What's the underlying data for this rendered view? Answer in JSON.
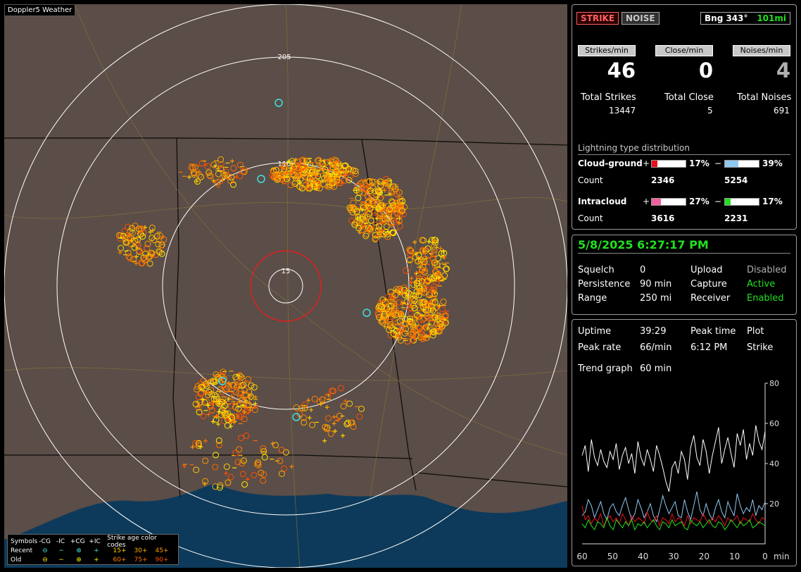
{
  "app_title": "Doppler5 Weather",
  "header": {
    "strike_label": "STRIKE",
    "noise_label": "NOISE",
    "bearing": "Bng 343°",
    "distance": "101mi"
  },
  "rates": [
    {
      "label": "Strikes/min",
      "value": "46",
      "total_label": "Total Strikes",
      "total": "13447"
    },
    {
      "label": "Close/min",
      "value": "0",
      "total_label": "Total Close",
      "total": "5"
    },
    {
      "label": "Noises/min",
      "value": "4",
      "total_label": "Total Noises",
      "total": "691"
    }
  ],
  "distribution": {
    "title": "Lightning type distribution",
    "cg_label": "Cloud-ground",
    "ic_label": "Intracloud",
    "count_label": "Count",
    "plus": "+",
    "minus": "−",
    "cg_pos": {
      "pct": "17%",
      "fill": 0.17,
      "count": "2346",
      "color": "#e8101a"
    },
    "cg_neg": {
      "pct": "39%",
      "fill": 0.39,
      "count": "5254",
      "color": "#8ec8f0"
    },
    "ic_pos": {
      "pct": "27%",
      "fill": 0.27,
      "count": "3616",
      "color": "#f060a0"
    },
    "ic_neg": {
      "pct": "17%",
      "fill": 0.17,
      "count": "2231",
      "color": "#20e020"
    }
  },
  "status": {
    "datetime": "5/8/2025 6:27:17 PM",
    "rows": [
      {
        "k": "Squelch",
        "v": "0",
        "k2": "Upload",
        "v2": "Disabled",
        "c2": "#b0b0b0"
      },
      {
        "k": "Persistence",
        "v": "90 min",
        "k2": "Capture",
        "v2": "Active",
        "c2": "#20e020"
      },
      {
        "k": "Range",
        "v": "250 mi",
        "k2": "Receiver",
        "v2": "Enabled",
        "c2": "#20e020"
      }
    ]
  },
  "stats": {
    "uptime_label": "Uptime",
    "uptime": "39:29",
    "peak_time_label": "Peak time",
    "peak_time": "6:12 PM",
    "plot_label": "Plot",
    "plot_value": "Strike",
    "peak_rate_label": "Peak rate",
    "peak_rate": "66/min",
    "trend_label": "Trend graph",
    "trend_value": "60 min"
  },
  "chart_data": {
    "type": "line",
    "xlabel": "min",
    "x_ticks": [
      "60",
      "50",
      "40",
      "30",
      "20",
      "10",
      "0"
    ],
    "y_ticks": [
      "80",
      "60",
      "40",
      "20"
    ],
    "xlim": [
      60,
      0
    ],
    "ylim": [
      0,
      80
    ],
    "series": [
      {
        "color": "#ffffff",
        "values": [
          44,
          49,
          36,
          52,
          43,
          39,
          47,
          41,
          38,
          46,
          42,
          50,
          37,
          44,
          48,
          40,
          45,
          35,
          51,
          43,
          39,
          47,
          42,
          36,
          49,
          44,
          38,
          31,
          26,
          38,
          41,
          35,
          46,
          42,
          32,
          48,
          54,
          43,
          39,
          52,
          46,
          35,
          44,
          51,
          58,
          40,
          47,
          53,
          45,
          38,
          55,
          49,
          57,
          42,
          50,
          44,
          59,
          51,
          47,
          56
        ]
      },
      {
        "color": "#8ec8f0",
        "values": [
          14,
          16,
          22,
          19,
          13,
          17,
          21,
          15,
          12,
          18,
          20,
          16,
          14,
          19,
          23,
          17,
          12,
          15,
          22,
          18,
          13,
          16,
          20,
          14,
          11,
          17,
          24,
          19,
          15,
          18,
          21,
          14,
          13,
          22,
          16,
          12,
          19,
          26,
          17,
          14,
          20,
          15,
          12,
          18,
          22,
          16,
          13,
          21,
          17,
          14,
          25,
          19,
          15,
          18,
          16,
          22,
          14,
          19,
          17,
          21
        ]
      },
      {
        "color": "#e8101a",
        "values": [
          19,
          12,
          14,
          10,
          13,
          11,
          15,
          9,
          12,
          14,
          11,
          13,
          10,
          15,
          12,
          9,
          14,
          11,
          13,
          12,
          10,
          16,
          12,
          11,
          14,
          9,
          13,
          12,
          10,
          15,
          11,
          13,
          12,
          9,
          14,
          10,
          13,
          12,
          11,
          15,
          12,
          10,
          13,
          11,
          14,
          12,
          9,
          13,
          11,
          12,
          14,
          10,
          13,
          12,
          11,
          15,
          12,
          10,
          13,
          12
        ]
      },
      {
        "color": "#20e020",
        "values": [
          10,
          8,
          12,
          9,
          7,
          11,
          10,
          8,
          13,
          9,
          7,
          12,
          10,
          8,
          11,
          9,
          12,
          7,
          10,
          9,
          11,
          8,
          10,
          12,
          9,
          7,
          11,
          10,
          8,
          12,
          9,
          10,
          11,
          8,
          7,
          12,
          10,
          9,
          11,
          8,
          10,
          12,
          9,
          8,
          11,
          10,
          7,
          9,
          12,
          10,
          8,
          11,
          9,
          10,
          12,
          8,
          9,
          11,
          10,
          9
        ]
      }
    ]
  },
  "map": {
    "range_labels": [
      "205",
      "110",
      "15"
    ],
    "legend": {
      "symbols_label": "Symbols",
      "cols": [
        "-CG",
        "-IC",
        "+CG",
        "+IC"
      ],
      "age_label": "Strike age color codes",
      "recent_label": "Recent",
      "old_label": "Old",
      "recent_ages": [
        "15+",
        "30+",
        "45+"
      ],
      "old_ages": [
        "60+",
        "75+",
        "90+"
      ]
    }
  }
}
